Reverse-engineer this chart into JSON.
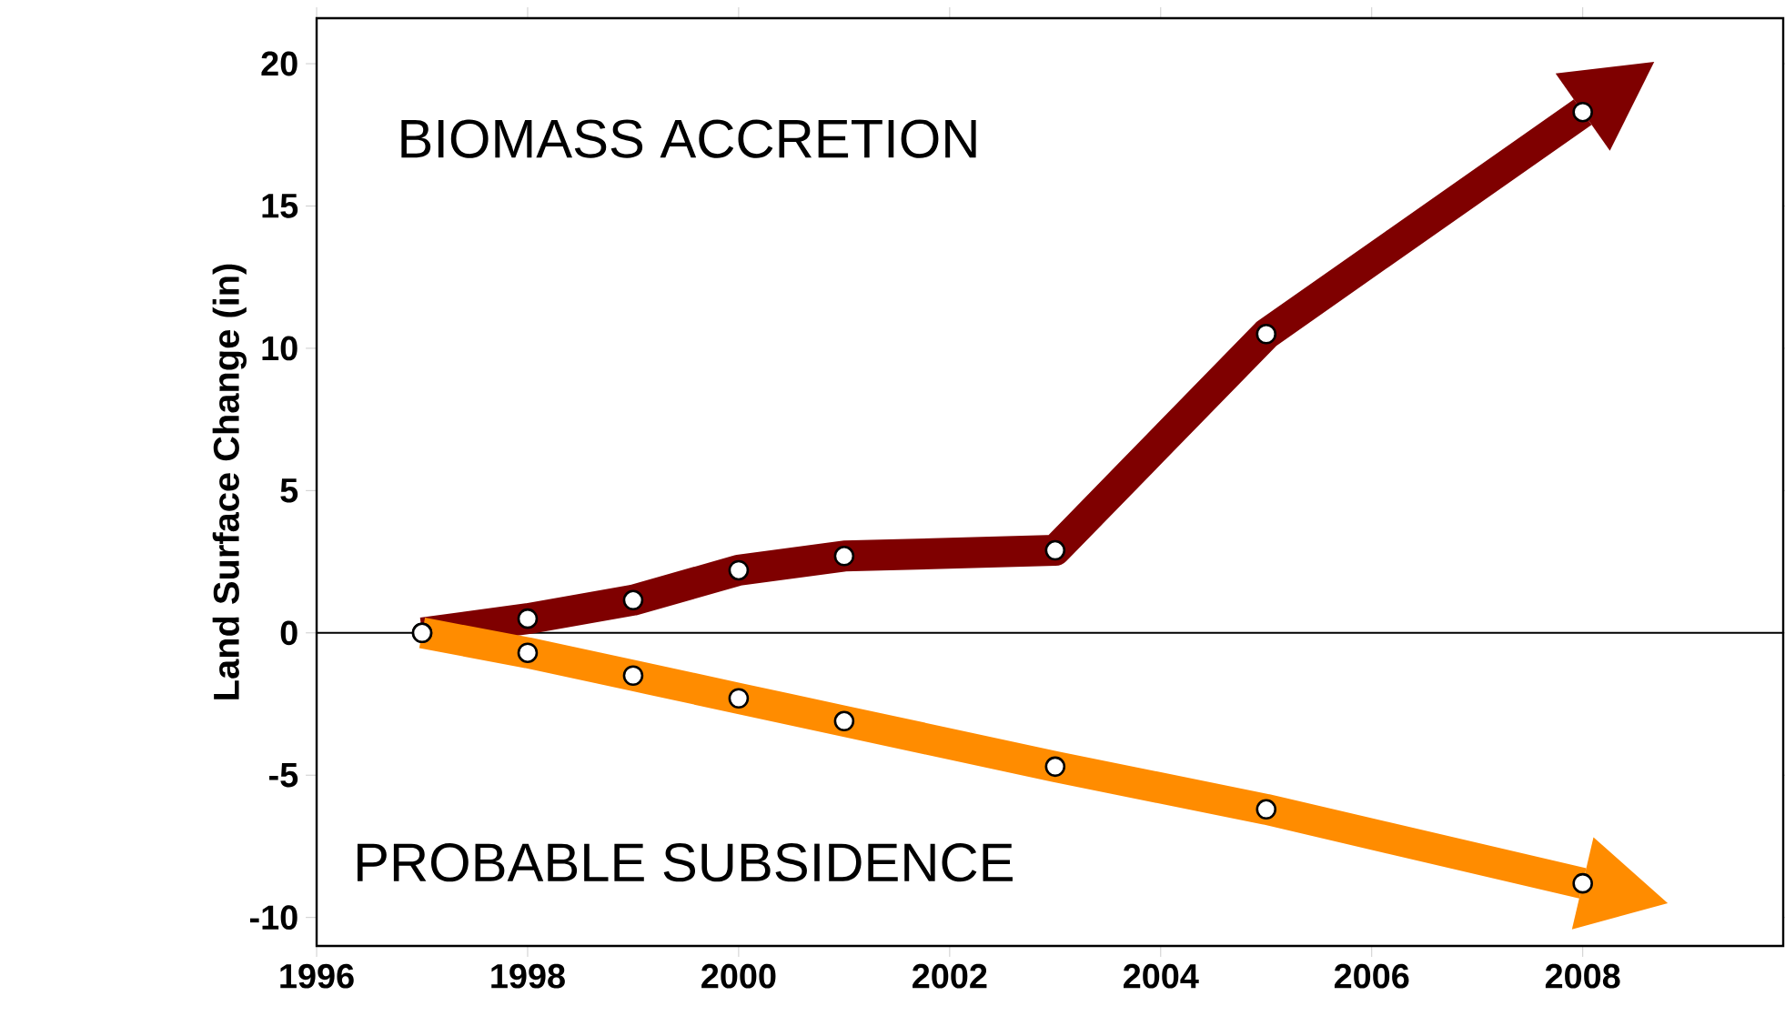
{
  "chart_data": {
    "type": "line",
    "ylabel": "Land Surface Change (in)",
    "annotations": [
      "BIOMASS ACCRETION",
      "PROBABLE SUBSIDENCE"
    ],
    "series": [
      {
        "color": "#7f0000",
        "x": [
          1997,
          1998,
          1999,
          2000,
          2001,
          2003,
          2005,
          2008
        ],
        "values": [
          0,
          0.5,
          1.15,
          2.2,
          2.7,
          2.9,
          10.5,
          18.3
        ]
      },
      {
        "color": "#ff8c00",
        "x": [
          1997,
          1998,
          1999,
          2000,
          2001,
          2003,
          2005,
          2008
        ],
        "values": [
          0,
          -0.7,
          -1.5,
          -2.3,
          -3.1,
          -4.7,
          -6.2,
          -8.8
        ]
      }
    ],
    "xlim": [
      1996,
      2009.9
    ],
    "ylim": [
      -11,
      21.6
    ],
    "xticks": [
      1996,
      1998,
      2000,
      2002,
      2004,
      2006,
      2008
    ],
    "yticks": [
      -10,
      -5,
      0,
      5,
      10,
      15,
      20
    ],
    "ref_lines": [
      {
        "axis": "y",
        "value": 0,
        "color": "#000000"
      }
    ],
    "marker": "circle",
    "line_style": "solid",
    "grid": false
  }
}
